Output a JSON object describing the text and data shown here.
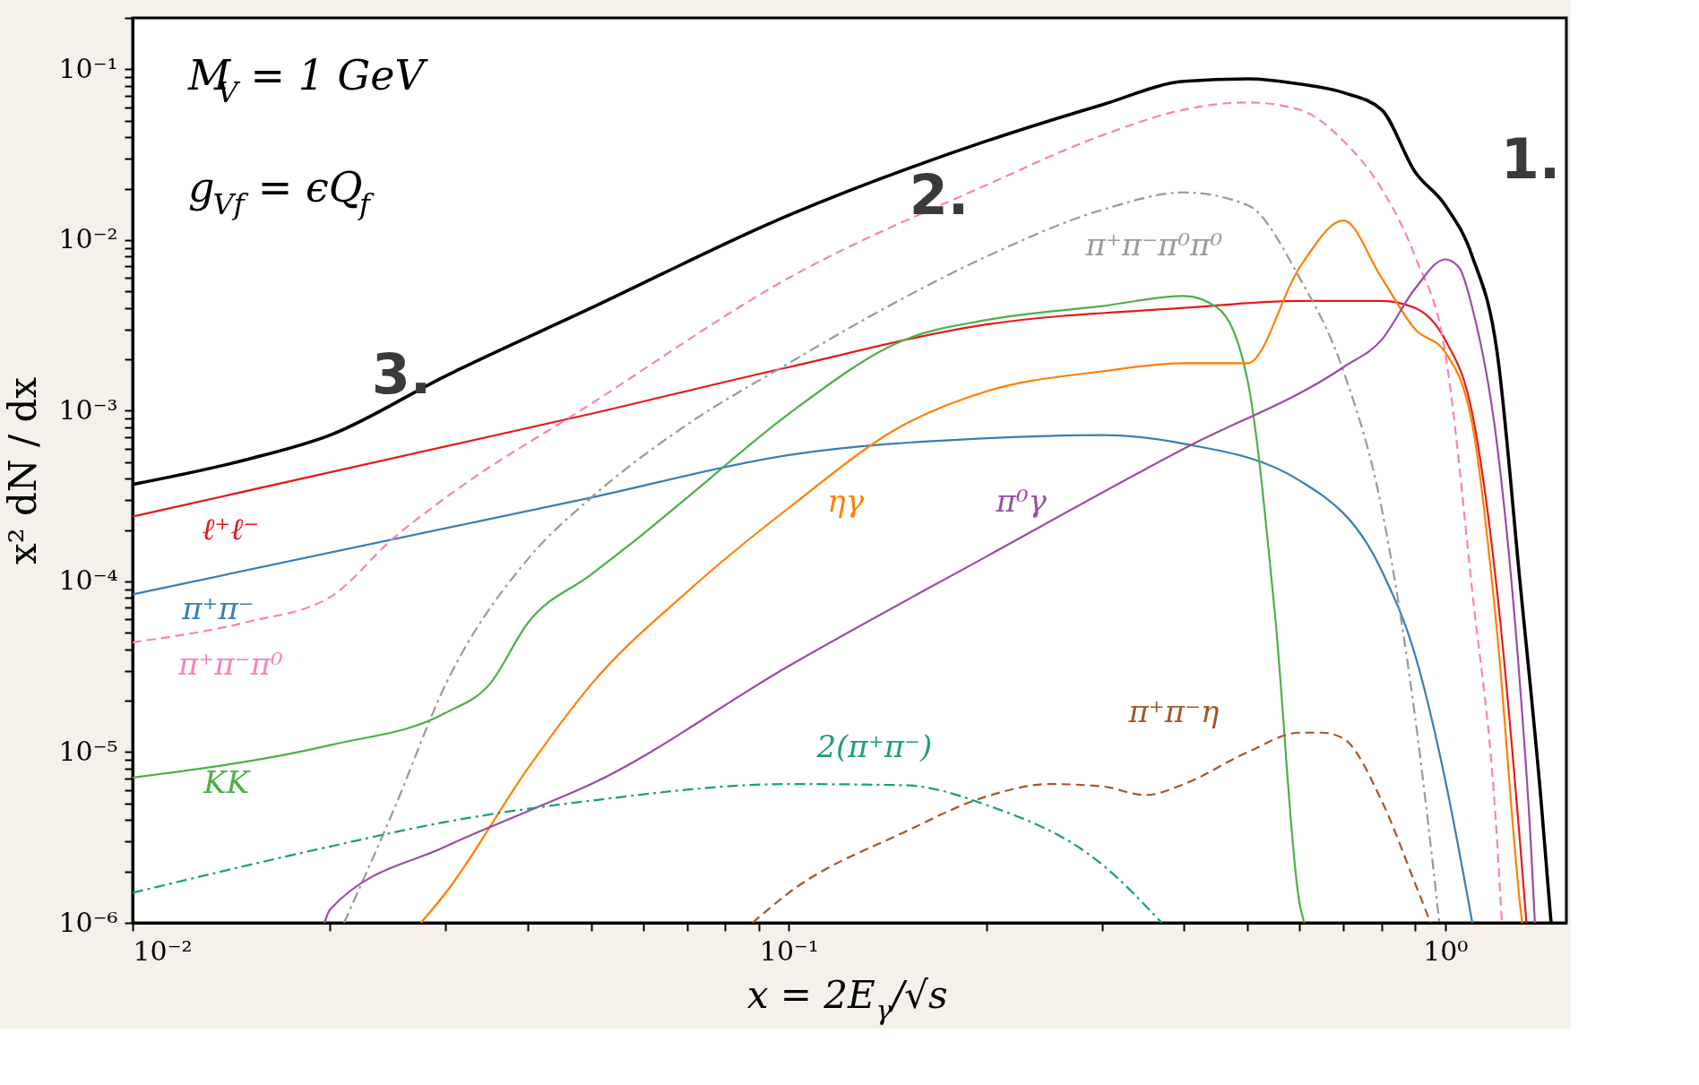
{
  "chart_data": {
    "type": "line",
    "xlabel": "x = 2E$_{γ}$/√s",
    "ylabel": "x² dN / dx",
    "log": "xy",
    "grid": false,
    "marker": "none",
    "xlim": [
      0.01,
      1.53
    ],
    "ylim": [
      1e-06,
      0.2
    ],
    "xticks": [
      {
        "value": 0.01,
        "label": "10⁻²"
      },
      {
        "value": 0.02,
        "label": null
      },
      {
        "value": 0.03,
        "label": null
      },
      {
        "value": 0.04,
        "label": null
      },
      {
        "value": 0.05,
        "label": null
      },
      {
        "value": 0.06,
        "label": null
      },
      {
        "value": 0.07,
        "label": null
      },
      {
        "value": 0.08,
        "label": null
      },
      {
        "value": 0.09,
        "label": null
      },
      {
        "value": 0.1,
        "label": "10⁻¹"
      },
      {
        "value": 0.2,
        "label": null
      },
      {
        "value": 0.3,
        "label": null
      },
      {
        "value": 0.4,
        "label": null
      },
      {
        "value": 0.5,
        "label": null
      },
      {
        "value": 0.6,
        "label": null
      },
      {
        "value": 0.7,
        "label": null
      },
      {
        "value": 0.8,
        "label": null
      },
      {
        "value": 0.9,
        "label": null
      },
      {
        "value": 1,
        "label": "10⁰"
      }
    ],
    "yticks": [
      {
        "value": 1e-06,
        "label": "10⁻⁶"
      },
      {
        "value": 2e-06,
        "label": null
      },
      {
        "value": 3e-06,
        "label": null
      },
      {
        "value": 4e-06,
        "label": null
      },
      {
        "value": 5e-06,
        "label": null
      },
      {
        "value": 6e-06,
        "label": null
      },
      {
        "value": 7e-06,
        "label": null
      },
      {
        "value": 8e-06,
        "label": null
      },
      {
        "value": 9e-06,
        "label": null
      },
      {
        "value": 1e-05,
        "label": "10⁻⁵"
      },
      {
        "value": 2e-05,
        "label": null
      },
      {
        "value": 3e-05,
        "label": null
      },
      {
        "value": 4e-05,
        "label": null
      },
      {
        "value": 5e-05,
        "label": null
      },
      {
        "value": 6e-05,
        "label": null
      },
      {
        "value": 7e-05,
        "label": null
      },
      {
        "value": 8e-05,
        "label": null
      },
      {
        "value": 9e-05,
        "label": null
      },
      {
        "value": 0.0001,
        "label": "10⁻⁴"
      },
      {
        "value": 0.0002,
        "label": null
      },
      {
        "value": 0.0003,
        "label": null
      },
      {
        "value": 0.0004,
        "label": null
      },
      {
        "value": 0.0005,
        "label": null
      },
      {
        "value": 0.0006,
        "label": null
      },
      {
        "value": 0.0007,
        "label": null
      },
      {
        "value": 0.0008,
        "label": null
      },
      {
        "value": 0.0009,
        "label": null
      },
      {
        "value": 0.001,
        "label": "10⁻³"
      },
      {
        "value": 0.002,
        "label": null
      },
      {
        "value": 0.003,
        "label": null
      },
      {
        "value": 0.004,
        "label": null
      },
      {
        "value": 0.005,
        "label": null
      },
      {
        "value": 0.006,
        "label": null
      },
      {
        "value": 0.007,
        "label": null
      },
      {
        "value": 0.008,
        "label": null
      },
      {
        "value": 0.009,
        "label": null
      },
      {
        "value": 0.01,
        "label": "10⁻²"
      },
      {
        "value": 0.02,
        "label": null
      },
      {
        "value": 0.03,
        "label": null
      },
      {
        "value": 0.04,
        "label": null
      },
      {
        "value": 0.05,
        "label": null
      },
      {
        "value": 0.06,
        "label": null
      },
      {
        "value": 0.07,
        "label": null
      },
      {
        "value": 0.08,
        "label": null
      },
      {
        "value": 0.09,
        "label": null
      },
      {
        "value": 0.1,
        "label": "10⁻¹"
      },
      {
        "value": 0.2,
        "label": null
      }
    ],
    "annotations": [
      "M$_{V}$ = 1 GeV",
      "g$_{Vf}$ = ϵQ$_{f}$",
      "1.",
      "2.",
      "3."
    ],
    "series": [
      {
        "color": "#000000",
        "line_style": "solid",
        "x": [
          0.01,
          0.015,
          0.02,
          0.03,
          0.05,
          0.1,
          0.2,
          0.3,
          0.4,
          0.5,
          0.6,
          0.7,
          0.8,
          0.9,
          1.0,
          1.1,
          1.2,
          1.3,
          1.4,
          1.45
        ],
        "values": [
          0.00037,
          0.00052,
          0.00072,
          0.0016,
          0.004,
          0.014,
          0.038,
          0.062,
          0.085,
          0.088,
          0.082,
          0.073,
          0.058,
          0.025,
          0.016,
          0.008,
          0.0022,
          0.0001,
          5.2e-06,
          1e-06
        ]
      },
      {
        "name": "ℓ⁺ℓ⁻",
        "color": "#e41a1c",
        "line_style": "solid",
        "x": [
          0.01,
          0.05,
          0.1,
          0.2,
          0.4,
          0.6,
          0.8,
          0.9,
          1.0,
          1.1,
          1.2,
          1.3,
          1.33
        ],
        "values": [
          0.00024,
          0.00096,
          0.0018,
          0.0032,
          0.004,
          0.0044,
          0.0044,
          0.004,
          0.0026,
          0.00096,
          8.7e-05,
          3e-06,
          1e-06
        ]
      },
      {
        "name": "π⁺π⁻",
        "color": "#377eb8",
        "line_style": "solid",
        "x": [
          0.01,
          0.05,
          0.1,
          0.2,
          0.3,
          0.4,
          0.6,
          0.8,
          0.9,
          1.0,
          1.1
        ],
        "values": [
          8.4e-05,
          0.00031,
          0.00055,
          0.00069,
          0.00072,
          0.00064,
          0.00039,
          0.000116,
          3.7e-05,
          6.9e-06,
          1e-06
        ]
      },
      {
        "name": "π⁺π⁻π⁰",
        "color": "#f781bf",
        "line_style": "dashed",
        "x": [
          0.01,
          0.015,
          0.02,
          0.025,
          0.03,
          0.05,
          0.1,
          0.2,
          0.3,
          0.4,
          0.5,
          0.6,
          0.7,
          0.8,
          0.9,
          1.0,
          1.1,
          1.2,
          1.22
        ],
        "values": [
          4.4e-05,
          5.8e-05,
          8.1e-05,
          0.00018,
          0.00031,
          0.0011,
          0.006,
          0.021,
          0.041,
          0.058,
          0.064,
          0.058,
          0.038,
          0.02,
          0.008,
          0.0022,
          8.7e-05,
          3e-06,
          1e-06
        ]
      },
      {
        "name": "π⁺π⁻π⁰π⁰",
        "color": "#999999",
        "line_style": "dashdot",
        "x": [
          0.021,
          0.025,
          0.03,
          0.04,
          0.05,
          0.07,
          0.1,
          0.15,
          0.2,
          0.3,
          0.4,
          0.5,
          0.6,
          0.7,
          0.8,
          0.9,
          0.98
        ],
        "values": [
          1e-06,
          4.6e-06,
          2.5e-05,
          0.000135,
          0.00031,
          0.00083,
          0.0019,
          0.0046,
          0.008,
          0.015,
          0.019,
          0.016,
          0.006,
          0.0017,
          0.00027,
          1.6e-05,
          1e-06
        ]
      },
      {
        "name": "KK",
        "color": "#4daf4a",
        "line_style": "solid",
        "x": [
          0.01,
          0.02,
          0.03,
          0.035,
          0.04,
          0.05,
          0.06,
          0.07,
          0.1,
          0.15,
          0.2,
          0.3,
          0.4,
          0.45,
          0.5,
          0.55,
          0.6,
          0.61
        ],
        "values": [
          7.1e-06,
          1.1e-05,
          1.7e-05,
          2.5e-05,
          5.7e-05,
          0.00011,
          0.00019,
          0.00031,
          0.00096,
          0.0026,
          0.0034,
          0.0041,
          0.0047,
          0.004,
          0.0015,
          6.6e-05,
          1.3e-06,
          1e-06
        ]
      },
      {
        "name": "ηγ",
        "color": "#ff7f00",
        "line_style": "solid",
        "x": [
          0.0275,
          0.03,
          0.04,
          0.05,
          0.07,
          0.1,
          0.15,
          0.2,
          0.3,
          0.4,
          0.5,
          0.6,
          0.7,
          0.8,
          0.9,
          1.0,
          1.1,
          1.2,
          1.3,
          1.31
        ],
        "values": [
          1e-06,
          1.5e-06,
          8e-06,
          2.5e-05,
          8.7e-05,
          0.00027,
          0.00083,
          0.0013,
          0.0017,
          0.0019,
          0.0019,
          0.0069,
          0.013,
          0.006,
          0.003,
          0.0022,
          0.00083,
          5e-05,
          1.3e-06,
          1e-06
        ]
      },
      {
        "name": "π⁰γ",
        "color": "#984ea3",
        "line_style": "solid",
        "x": [
          0.0196,
          0.02,
          0.03,
          0.04,
          0.05,
          0.1,
          0.2,
          0.4,
          0.7,
          0.8,
          0.9,
          1.0,
          1.05,
          1.1,
          1.2,
          1.3,
          1.35,
          1.37
        ],
        "values": [
          1e-06,
          1.2e-06,
          2.8e-06,
          4.5e-06,
          6.5e-06,
          3.2e-05,
          0.00014,
          0.0006,
          0.0018,
          0.0026,
          0.0052,
          0.0077,
          0.0069,
          0.004,
          0.00063,
          2.5e-05,
          3e-06,
          1e-06
        ]
      },
      {
        "name": "2(π⁺π⁻)",
        "color": "#1b9e77",
        "line_style": "dashdot",
        "x": [
          0.01,
          0.02,
          0.03,
          0.05,
          0.1,
          0.15,
          0.2,
          0.3,
          0.37
        ],
        "values": [
          1.5e-06,
          2.8e-06,
          3.9e-06,
          5.2e-06,
          6.5e-06,
          6.4e-06,
          4.9e-06,
          2.2e-06,
          1e-06
        ]
      },
      {
        "name": "π⁺π⁻η",
        "color": "#a65628",
        "line_style": "dashed",
        "x": [
          0.088,
          0.1,
          0.15,
          0.2,
          0.25,
          0.3,
          0.35,
          0.4,
          0.5,
          0.6,
          0.65,
          0.7,
          0.8,
          0.9,
          0.95
        ],
        "values": [
          1e-06,
          1.5e-06,
          3.4e-06,
          5.5e-06,
          6.5e-06,
          6.3e-06,
          5.6e-06,
          6.5e-06,
          1e-05,
          1.3e-05,
          1.3e-05,
          1.2e-05,
          5.2e-06,
          1.7e-06,
          1e-06
        ]
      }
    ]
  }
}
